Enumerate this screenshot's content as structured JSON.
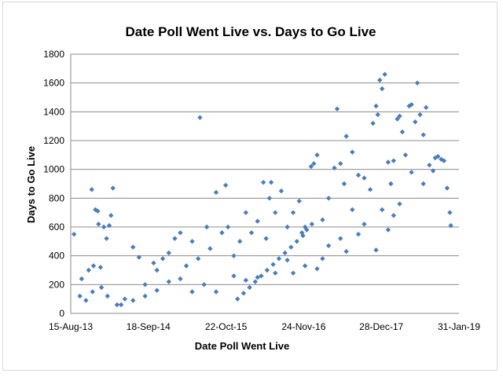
{
  "chart_data": {
    "type": "scatter",
    "title": "Date Poll Went Live vs. Days to Go Live",
    "xlabel": "Date Poll Went Live",
    "ylabel": "Days to Go Live",
    "x_ticks": [
      "15-Aug-13",
      "18-Sep-14",
      "22-Oct-15",
      "24-Nov-16",
      "28-Dec-17",
      "31-Jan-19"
    ],
    "xlim": [
      "2013-08-15",
      "2019-01-31"
    ],
    "ylim": [
      0,
      1800
    ],
    "y_ticks": [
      0,
      200,
      400,
      600,
      800,
      1000,
      1200,
      1400,
      1600,
      1800
    ],
    "grid": "horizontal",
    "legend": "none",
    "marker_color": "#4a7ebb",
    "series": [
      {
        "marker": "diamond",
        "points": [
          [
            "2013-09-01",
            550
          ],
          [
            "2013-10-01",
            120
          ],
          [
            "2013-10-10",
            240
          ],
          [
            "2013-11-15",
            300
          ],
          [
            "2013-12-01",
            860
          ],
          [
            "2013-12-10",
            330
          ],
          [
            "2013-12-20",
            720
          ],
          [
            "2014-01-01",
            710
          ],
          [
            "2014-01-05",
            620
          ],
          [
            "2014-01-15",
            320
          ],
          [
            "2014-02-01",
            600
          ],
          [
            "2014-02-15",
            520
          ],
          [
            "2014-03-01",
            610
          ],
          [
            "2014-03-10",
            680
          ],
          [
            "2014-03-20",
            870
          ],
          [
            "2014-02-20",
            120
          ],
          [
            "2014-01-20",
            180
          ],
          [
            "2013-12-05",
            150
          ],
          [
            "2013-11-01",
            90
          ],
          [
            "2014-04-10",
            60
          ],
          [
            "2014-05-20",
            100
          ],
          [
            "2014-07-01",
            460
          ],
          [
            "2014-08-01",
            390
          ],
          [
            "2014-09-01",
            200
          ],
          [
            "2014-10-15",
            350
          ],
          [
            "2014-11-01",
            300
          ],
          [
            "2014-12-01",
            380
          ],
          [
            "2015-01-01",
            420
          ],
          [
            "2015-02-01",
            520
          ],
          [
            "2015-03-01",
            560
          ],
          [
            "2015-04-01",
            330
          ],
          [
            "2015-05-01",
            500
          ],
          [
            "2015-06-10",
            1360
          ],
          [
            "2015-06-01",
            380
          ],
          [
            "2015-07-15",
            600
          ],
          [
            "2015-08-01",
            450
          ],
          [
            "2015-09-01",
            840
          ],
          [
            "2015-10-01",
            560
          ],
          [
            "2015-10-20",
            890
          ],
          [
            "2015-11-01",
            600
          ],
          [
            "2015-12-01",
            400
          ],
          [
            "2016-01-01",
            500
          ],
          [
            "2016-02-01",
            700
          ],
          [
            "2016-03-01",
            560
          ],
          [
            "2016-04-01",
            640
          ],
          [
            "2016-05-01",
            910
          ],
          [
            "2016-05-15",
            520
          ],
          [
            "2016-06-01",
            800
          ],
          [
            "2016-06-10",
            910
          ],
          [
            "2016-07-01",
            700
          ],
          [
            "2016-08-01",
            850
          ],
          [
            "2016-09-01",
            600
          ],
          [
            "2016-10-01",
            700
          ],
          [
            "2016-11-01",
            780
          ],
          [
            "2016-11-15",
            560
          ],
          [
            "2016-12-01",
            600
          ],
          [
            "2017-01-01",
            1020
          ],
          [
            "2017-01-15",
            1040
          ],
          [
            "2017-02-01",
            1100
          ],
          [
            "2017-03-01",
            650
          ],
          [
            "2017-04-01",
            800
          ],
          [
            "2017-05-01",
            1010
          ],
          [
            "2017-05-15",
            1420
          ],
          [
            "2017-06-01",
            1040
          ],
          [
            "2017-06-20",
            900
          ],
          [
            "2017-07-01",
            1230
          ],
          [
            "2017-08-01",
            1120
          ],
          [
            "2017-09-01",
            960
          ],
          [
            "2017-10-01",
            940
          ],
          [
            "2017-11-01",
            860
          ],
          [
            "2017-11-15",
            1320
          ],
          [
            "2017-12-01",
            1440
          ],
          [
            "2017-12-10",
            1380
          ],
          [
            "2017-12-20",
            1620
          ],
          [
            "2018-01-01",
            1560
          ],
          [
            "2018-01-15",
            1660
          ],
          [
            "2018-02-01",
            1050
          ],
          [
            "2018-02-15",
            900
          ],
          [
            "2018-03-01",
            1060
          ],
          [
            "2018-03-20",
            1350
          ],
          [
            "2018-04-01",
            1370
          ],
          [
            "2018-04-15",
            1260
          ],
          [
            "2018-05-01",
            1100
          ],
          [
            "2018-05-20",
            1440
          ],
          [
            "2018-06-01",
            1450
          ],
          [
            "2018-06-20",
            1330
          ],
          [
            "2018-07-01",
            1600
          ],
          [
            "2018-07-15",
            1380
          ],
          [
            "2018-08-01",
            1240
          ],
          [
            "2018-08-15",
            1430
          ],
          [
            "2018-09-01",
            1030
          ],
          [
            "2018-09-20",
            990
          ],
          [
            "2018-10-01",
            1080
          ],
          [
            "2018-10-15",
            1090
          ],
          [
            "2018-11-01",
            1070
          ],
          [
            "2018-11-15",
            1060
          ],
          [
            "2018-12-01",
            870
          ],
          [
            "2018-12-15",
            700
          ],
          [
            "2018-12-20",
            610
          ],
          [
            "2018-08-01",
            900
          ],
          [
            "2018-06-01",
            980
          ],
          [
            "2018-04-01",
            760
          ],
          [
            "2018-03-01",
            680
          ],
          [
            "2018-02-01",
            580
          ],
          [
            "2018-01-01",
            720
          ],
          [
            "2017-12-01",
            440
          ],
          [
            "2017-10-01",
            620
          ],
          [
            "2017-09-01",
            550
          ],
          [
            "2017-08-01",
            720
          ],
          [
            "2017-07-01",
            430
          ],
          [
            "2017-06-01",
            520
          ],
          [
            "2017-04-01",
            470
          ],
          [
            "2017-03-01",
            380
          ],
          [
            "2017-02-01",
            310
          ],
          [
            "2016-12-01",
            330
          ],
          [
            "2016-10-01",
            280
          ],
          [
            "2016-09-01",
            370
          ],
          [
            "2016-07-01",
            280
          ],
          [
            "2016-04-01",
            250
          ],
          [
            "2016-02-01",
            230
          ],
          [
            "2015-12-01",
            260
          ],
          [
            "2015-09-01",
            150
          ],
          [
            "2015-07-01",
            200
          ],
          [
            "2015-05-01",
            150
          ],
          [
            "2015-03-01",
            240
          ],
          [
            "2015-01-01",
            220
          ],
          [
            "2014-11-01",
            160
          ],
          [
            "2014-09-01",
            120
          ],
          [
            "2014-07-01",
            90
          ],
          [
            "2014-05-01",
            60
          ],
          [
            "2016-11-20",
            540
          ],
          [
            "2016-12-10",
            580
          ],
          [
            "2017-01-05",
            620
          ],
          [
            "2016-10-20",
            500
          ],
          [
            "2016-09-20",
            460
          ],
          [
            "2016-08-20",
            420
          ],
          [
            "2016-07-20",
            380
          ],
          [
            "2016-06-20",
            340
          ],
          [
            "2016-05-20",
            300
          ],
          [
            "2016-04-20",
            260
          ],
          [
            "2016-03-20",
            220
          ],
          [
            "2016-02-20",
            180
          ],
          [
            "2016-01-20",
            140
          ],
          [
            "2015-12-20",
            100
          ]
        ]
      }
    ]
  }
}
